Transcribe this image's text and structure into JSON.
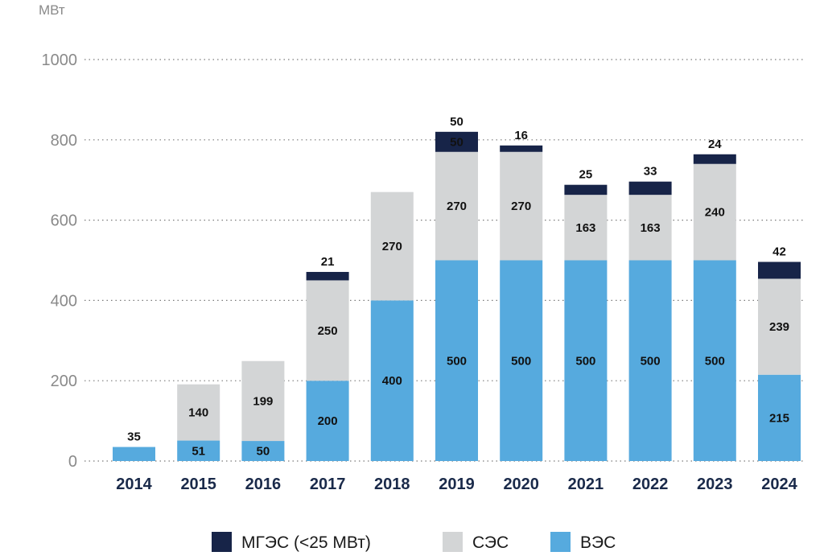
{
  "chart_data": {
    "type": "bar",
    "stacked": true,
    "ylabel": "МВт",
    "ylim": [
      0,
      1000
    ],
    "yticks": [
      0,
      200,
      400,
      600,
      800,
      1000
    ],
    "grid": true,
    "legend_position": "bottom",
    "categories": [
      "2014",
      "2015",
      "2016",
      "2017",
      "2018",
      "2019",
      "2020",
      "2021",
      "2022",
      "2023",
      "2024"
    ],
    "series": [
      {
        "name": "ВЭС",
        "color": "#56aade",
        "values": [
          35,
          51,
          50,
          200,
          400,
          500,
          500,
          500,
          500,
          500,
          215
        ],
        "labels": [
          "",
          "51",
          "50",
          "200",
          "400",
          "500",
          "500",
          "500",
          "500",
          "500",
          "215"
        ]
      },
      {
        "name": "СЭС",
        "color": "#d3d5d6",
        "values": [
          0,
          140,
          199,
          250,
          270,
          270,
          270,
          163,
          163,
          240,
          239
        ],
        "labels": [
          "",
          "140",
          "199",
          "250",
          "270",
          "270",
          "270",
          "163",
          "163",
          "240",
          "239"
        ]
      },
      {
        "name": "МГЭС (<25 МВт)",
        "color": "#172448",
        "values": [
          0,
          0,
          0,
          21,
          0,
          50,
          16,
          25,
          33,
          24,
          42
        ],
        "labels": [
          "",
          "",
          "",
          "21",
          "",
          "50",
          "16",
          "25",
          "33",
          "24",
          "42"
        ]
      }
    ],
    "top_labels": [
      "35",
      "",
      "",
      "21",
      "",
      "50",
      "16",
      "25",
      "33",
      "24",
      "42"
    ]
  }
}
